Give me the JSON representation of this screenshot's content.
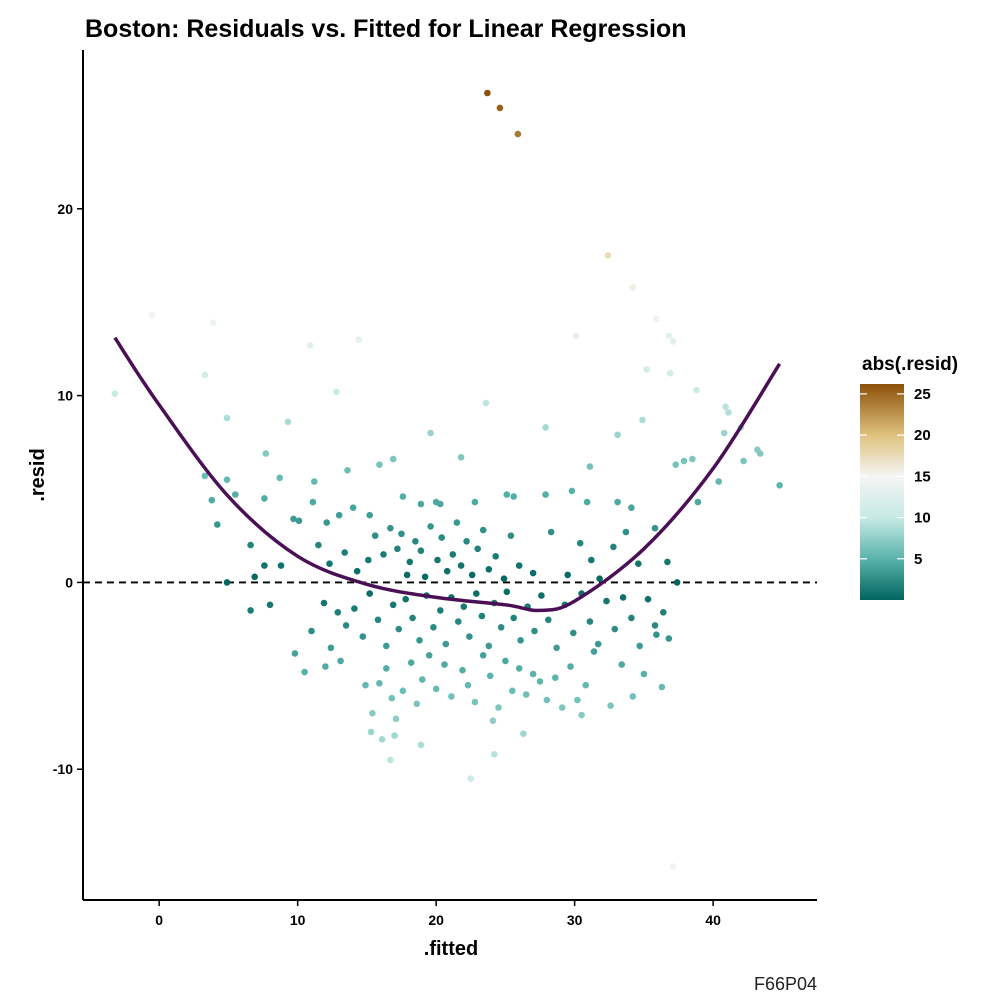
{
  "chart_data": {
    "type": "scatter",
    "title": "Boston: Residuals vs. Fitted for Linear Regression",
    "xlabel": ".fitted",
    "ylabel": ".resid",
    "xlim": [
      -5.5,
      47.5
    ],
    "ylim": [
      -17,
      28.5
    ],
    "x_ticks": [
      0,
      10,
      20,
      30,
      40
    ],
    "x_tick_labels": [
      "0",
      "10",
      "20",
      "30",
      "40"
    ],
    "y_ticks": [
      -10,
      0,
      10,
      20
    ],
    "y_tick_labels": [
      "-10",
      "0",
      "10",
      "20"
    ],
    "grid": false,
    "reference_line": {
      "y": 0,
      "style": "dashed"
    },
    "smooth_line": {
      "color": "#4a0f55",
      "x": [
        -3.2,
        0,
        5,
        10,
        15,
        20,
        25,
        27.5,
        30,
        35,
        40,
        44.8
      ],
      "y": [
        13.1,
        9.5,
        4.6,
        1.4,
        -0.1,
        -0.8,
        -1.2,
        -1.5,
        -1.0,
        1.8,
        6.1,
        11.7
      ]
    },
    "color_scale": {
      "title": "abs(.resid)",
      "domain": [
        0,
        26.2
      ],
      "ticks": [
        5,
        10,
        15,
        20,
        25
      ],
      "tick_labels": [
        "5",
        "10",
        "15",
        "20",
        "25"
      ],
      "stops": [
        {
          "v": 0,
          "color": "#01665e"
        },
        {
          "v": 5,
          "color": "#5ab4ac"
        },
        {
          "v": 10,
          "color": "#c7eae5"
        },
        {
          "v": 15,
          "color": "#f5f5f5"
        },
        {
          "v": 20,
          "color": "#dfc27d"
        },
        {
          "v": 26.2,
          "color": "#8c510a"
        }
      ]
    },
    "points": [
      [
        23.7,
        26.2
      ],
      [
        24.6,
        25.4
      ],
      [
        25.9,
        24.0
      ],
      [
        32.4,
        17.5
      ],
      [
        34.2,
        15.8
      ],
      [
        -0.5,
        14.3
      ],
      [
        3.9,
        13.9
      ],
      [
        10.9,
        12.7
      ],
      [
        14.4,
        13.0
      ],
      [
        30.1,
        13.2
      ],
      [
        35.9,
        14.1
      ],
      [
        36.8,
        13.2
      ],
      [
        37.1,
        12.9
      ],
      [
        36.9,
        11.2
      ],
      [
        35.2,
        11.4
      ],
      [
        -3.2,
        10.1
      ],
      [
        3.3,
        11.1
      ],
      [
        4.9,
        8.8
      ],
      [
        9.3,
        8.6
      ],
      [
        12.8,
        10.2
      ],
      [
        23.6,
        9.6
      ],
      [
        38.8,
        10.3
      ],
      [
        40.9,
        9.4
      ],
      [
        41.1,
        9.1
      ],
      [
        34.9,
        8.7
      ],
      [
        27.9,
        8.3
      ],
      [
        19.6,
        8.0
      ],
      [
        42.0,
        8.3
      ],
      [
        40.8,
        8.0
      ],
      [
        33.1,
        7.9
      ],
      [
        3.3,
        5.7
      ],
      [
        3.8,
        4.4
      ],
      [
        4.9,
        5.5
      ],
      [
        5.5,
        4.7
      ],
      [
        7.7,
        6.9
      ],
      [
        8.7,
        5.6
      ],
      [
        13.6,
        6.0
      ],
      [
        15.9,
        6.3
      ],
      [
        16.9,
        6.6
      ],
      [
        21.8,
        6.7
      ],
      [
        31.1,
        6.2
      ],
      [
        37.3,
        6.3
      ],
      [
        37.9,
        6.5
      ],
      [
        38.5,
        6.6
      ],
      [
        40.4,
        5.4
      ],
      [
        42.2,
        6.5
      ],
      [
        43.2,
        7.1
      ],
      [
        43.4,
        6.9
      ],
      [
        44.8,
        5.2
      ],
      [
        4.2,
        3.1
      ],
      [
        7.6,
        4.5
      ],
      [
        9.7,
        3.4
      ],
      [
        11.1,
        4.3
      ],
      [
        11.2,
        5.4
      ],
      [
        14.0,
        4.0
      ],
      [
        13.0,
        3.6
      ],
      [
        15.2,
        3.6
      ],
      [
        17.6,
        4.6
      ],
      [
        18.9,
        4.2
      ],
      [
        20.0,
        4.3
      ],
      [
        20.3,
        4.2
      ],
      [
        22.8,
        4.3
      ],
      [
        25.1,
        4.7
      ],
      [
        25.6,
        4.6
      ],
      [
        27.9,
        4.7
      ],
      [
        29.8,
        4.9
      ],
      [
        30.9,
        4.3
      ],
      [
        33.1,
        4.3
      ],
      [
        34.1,
        4.0
      ],
      [
        38.9,
        4.3
      ],
      [
        6.6,
        2.0
      ],
      [
        6.9,
        0.3
      ],
      [
        7.6,
        0.9
      ],
      [
        8.8,
        0.9
      ],
      [
        10.1,
        3.3
      ],
      [
        11.5,
        2.0
      ],
      [
        12.1,
        3.2
      ],
      [
        12.3,
        1.0
      ],
      [
        13.4,
        1.6
      ],
      [
        14.3,
        0.6
      ],
      [
        15.1,
        1.2
      ],
      [
        15.6,
        2.5
      ],
      [
        16.2,
        1.5
      ],
      [
        16.7,
        2.9
      ],
      [
        17.2,
        1.8
      ],
      [
        17.5,
        2.6
      ],
      [
        17.9,
        0.4
      ],
      [
        18.1,
        1.1
      ],
      [
        18.5,
        2.2
      ],
      [
        18.9,
        1.7
      ],
      [
        19.2,
        0.3
      ],
      [
        19.6,
        3.0
      ],
      [
        20.1,
        1.2
      ],
      [
        20.4,
        2.4
      ],
      [
        20.8,
        0.6
      ],
      [
        21.2,
        1.5
      ],
      [
        21.5,
        3.2
      ],
      [
        21.8,
        0.9
      ],
      [
        22.2,
        2.2
      ],
      [
        22.6,
        0.4
      ],
      [
        23.0,
        1.8
      ],
      [
        23.4,
        2.8
      ],
      [
        23.8,
        0.7
      ],
      [
        24.3,
        1.4
      ],
      [
        24.9,
        0.2
      ],
      [
        25.4,
        2.5
      ],
      [
        26.0,
        0.9
      ],
      [
        27.0,
        0.5
      ],
      [
        28.3,
        2.7
      ],
      [
        29.5,
        0.4
      ],
      [
        30.4,
        2.1
      ],
      [
        31.2,
        1.2
      ],
      [
        31.8,
        0.2
      ],
      [
        32.8,
        1.9
      ],
      [
        33.7,
        2.7
      ],
      [
        34.6,
        1.0
      ],
      [
        35.8,
        2.9
      ],
      [
        36.7,
        1.1
      ],
      [
        37.4,
        0.0
      ],
      [
        4.9,
        0.0
      ],
      [
        6.6,
        -1.5
      ],
      [
        8.0,
        -1.2
      ],
      [
        9.8,
        -3.8
      ],
      [
        10.5,
        -4.8
      ],
      [
        11.0,
        -2.6
      ],
      [
        11.9,
        -1.1
      ],
      [
        12.4,
        -3.5
      ],
      [
        12.9,
        -1.6
      ],
      [
        13.5,
        -2.3
      ],
      [
        14.1,
        -1.4
      ],
      [
        14.7,
        -2.9
      ],
      [
        15.2,
        -0.6
      ],
      [
        15.8,
        -2.0
      ],
      [
        16.4,
        -3.4
      ],
      [
        16.9,
        -1.2
      ],
      [
        17.3,
        -2.5
      ],
      [
        17.8,
        -0.9
      ],
      [
        18.3,
        -1.9
      ],
      [
        18.8,
        -3.1
      ],
      [
        19.3,
        -0.7
      ],
      [
        19.8,
        -2.4
      ],
      [
        20.3,
        -1.5
      ],
      [
        20.7,
        -3.3
      ],
      [
        21.1,
        -0.8
      ],
      [
        21.6,
        -2.1
      ],
      [
        22.0,
        -1.3
      ],
      [
        22.4,
        -2.9
      ],
      [
        22.9,
        -0.6
      ],
      [
        23.3,
        -1.8
      ],
      [
        23.8,
        -3.4
      ],
      [
        24.2,
        -1.1
      ],
      [
        24.7,
        -2.4
      ],
      [
        25.1,
        -0.5
      ],
      [
        25.6,
        -1.9
      ],
      [
        26.1,
        -3.1
      ],
      [
        26.6,
        -1.3
      ],
      [
        27.1,
        -2.6
      ],
      [
        27.6,
        -0.7
      ],
      [
        28.1,
        -2.0
      ],
      [
        28.7,
        -3.5
      ],
      [
        29.3,
        -1.2
      ],
      [
        29.9,
        -2.7
      ],
      [
        30.5,
        -0.6
      ],
      [
        31.1,
        -2.1
      ],
      [
        31.7,
        -3.3
      ],
      [
        32.3,
        -1.0
      ],
      [
        32.9,
        -2.5
      ],
      [
        33.5,
        -0.8
      ],
      [
        34.1,
        -1.9
      ],
      [
        34.7,
        -3.4
      ],
      [
        35.3,
        -0.9
      ],
      [
        35.8,
        -2.3
      ],
      [
        36.4,
        -1.6
      ],
      [
        36.8,
        -3.0
      ],
      [
        35.9,
        -2.8
      ],
      [
        12.0,
        -4.5
      ],
      [
        13.1,
        -4.2
      ],
      [
        14.9,
        -5.5
      ],
      [
        15.4,
        -7.0
      ],
      [
        15.9,
        -5.4
      ],
      [
        16.4,
        -4.6
      ],
      [
        16.8,
        -6.2
      ],
      [
        17.1,
        -7.3
      ],
      [
        17.6,
        -5.8
      ],
      [
        18.2,
        -4.3
      ],
      [
        18.6,
        -6.5
      ],
      [
        19.0,
        -5.2
      ],
      [
        19.5,
        -3.9
      ],
      [
        20.0,
        -5.7
      ],
      [
        20.6,
        -4.4
      ],
      [
        21.1,
        -6.1
      ],
      [
        21.9,
        -4.7
      ],
      [
        22.3,
        -5.5
      ],
      [
        22.8,
        -6.4
      ],
      [
        23.4,
        -3.9
      ],
      [
        23.9,
        -5.0
      ],
      [
        24.5,
        -6.7
      ],
      [
        25.0,
        -4.2
      ],
      [
        25.5,
        -5.8
      ],
      [
        26.0,
        -4.6
      ],
      [
        26.5,
        -6.0
      ],
      [
        27.0,
        -4.9
      ],
      [
        27.5,
        -5.3
      ],
      [
        28.0,
        -6.3
      ],
      [
        28.6,
        -5.1
      ],
      [
        29.1,
        -6.7
      ],
      [
        29.7,
        -4.5
      ],
      [
        30.2,
        -6.3
      ],
      [
        30.8,
        -5.5
      ],
      [
        31.4,
        -3.7
      ],
      [
        32.6,
        -6.6
      ],
      [
        33.4,
        -4.4
      ],
      [
        34.2,
        -6.1
      ],
      [
        35.0,
        -4.9
      ],
      [
        36.3,
        -5.6
      ],
      [
        15.3,
        -8.0
      ],
      [
        16.1,
        -8.4
      ],
      [
        17.0,
        -8.2
      ],
      [
        18.9,
        -8.7
      ],
      [
        16.7,
        -9.5
      ],
      [
        24.2,
        -9.2
      ],
      [
        22.5,
        -10.5
      ],
      [
        30.5,
        -7.1
      ],
      [
        24.1,
        -7.4
      ],
      [
        26.3,
        -8.1
      ],
      [
        37.1,
        -15.2
      ]
    ]
  },
  "caption": "F66P04"
}
